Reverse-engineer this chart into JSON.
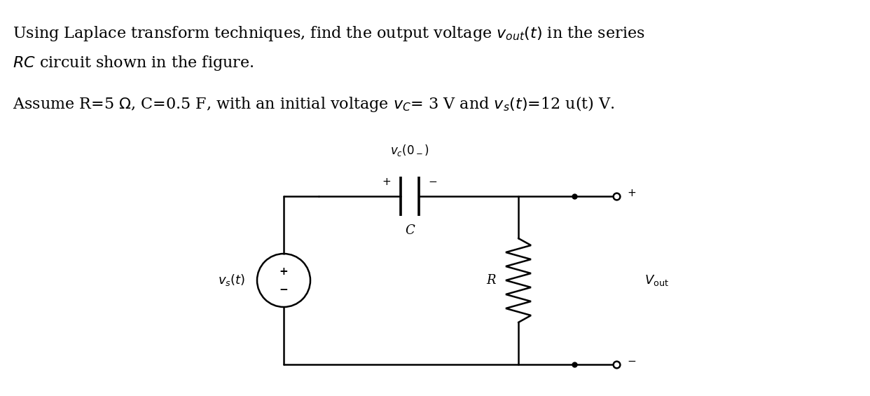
{
  "bg_color": "#ffffff",
  "text_color": "#000000",
  "line_color": "#000000",
  "fig_width": 12.42,
  "fig_height": 5.65,
  "font_size_text": 16,
  "font_size_circuit": 13
}
